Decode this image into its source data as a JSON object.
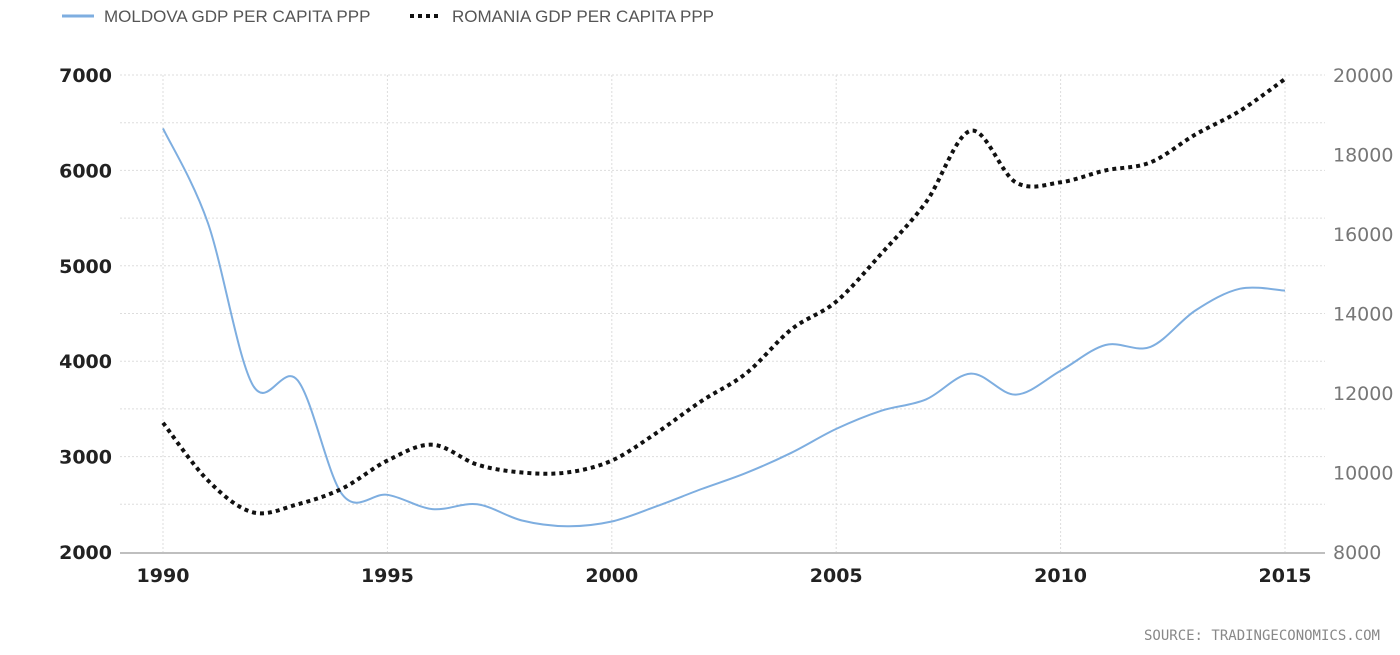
{
  "chart_data": {
    "type": "line",
    "x": [
      1990,
      1991,
      1992,
      1993,
      1994,
      1995,
      1996,
      1997,
      1998,
      1999,
      2000,
      2001,
      2002,
      2003,
      2004,
      2005,
      2006,
      2007,
      2008,
      2009,
      2010,
      2011,
      2012,
      2013,
      2014,
      2015
    ],
    "series": [
      {
        "name": "MOLDOVA GDP PER CAPITA PPP",
        "axis": "left",
        "color": "#7eaee0",
        "style": "solid",
        "values": [
          6440,
          5450,
          3750,
          3800,
          2600,
          2600,
          2450,
          2500,
          2330,
          2270,
          2320,
          2480,
          2660,
          2830,
          3040,
          3290,
          3480,
          3600,
          3870,
          3650,
          3900,
          4170,
          4150,
          4530,
          4760,
          4740
        ]
      },
      {
        "name": "ROMANIA GDP PER CAPITA PPP",
        "axis": "right",
        "color": "#111111",
        "style": "dotted",
        "values": [
          11250,
          9800,
          9000,
          9200,
          9600,
          10300,
          10700,
          10200,
          10000,
          10000,
          10300,
          11000,
          11800,
          12500,
          13600,
          14300,
          15500,
          16800,
          18600,
          17300,
          17300,
          17600,
          17800,
          18500,
          19100,
          19900
        ]
      }
    ],
    "x_ticks": [
      1990,
      1995,
      2000,
      2005,
      2010,
      2015
    ],
    "y_left_ticks": [
      2000,
      3000,
      4000,
      5000,
      6000,
      7000
    ],
    "y_right_ticks": [
      8000,
      10000,
      12000,
      14000,
      16000,
      18000,
      20000
    ],
    "xlim": [
      1990,
      2015
    ],
    "ylim_left": [
      2000,
      7000
    ],
    "ylim_right": [
      8000,
      20000
    ],
    "grid": true,
    "legend_position": "top-left",
    "source": "SOURCE: TRADINGECONOMICS.COM"
  }
}
